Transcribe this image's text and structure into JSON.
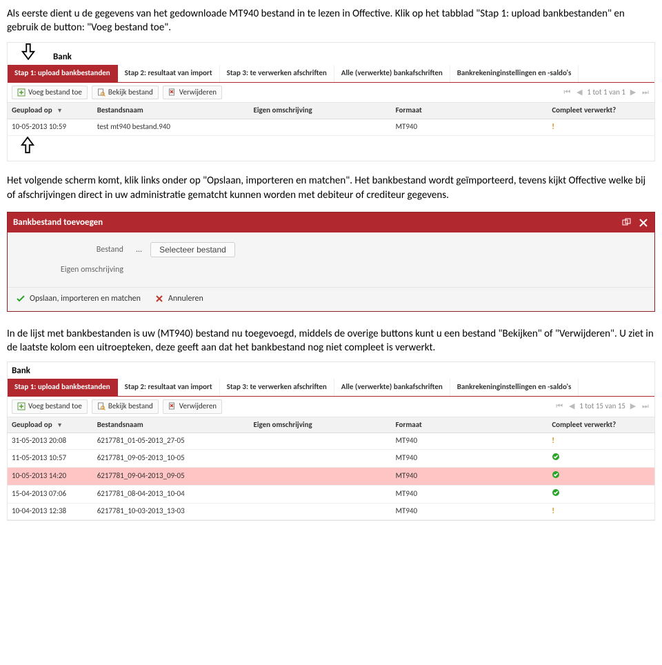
{
  "paragraphs": {
    "p1": "Als eerste dient u de gegevens van het gedownloade MT940 bestand in te lezen in Offective. Klik op het tabblad \"Stap 1: upload bankbestanden\" en gebruik de button: \"Voeg bestand toe\".",
    "p2": "Het volgende scherm komt, klik links onder op \"Opslaan, importeren en matchen\". Het bankbestand wordt geïmporteerd, tevens kijkt Offective welke bij of afschrijvingen direct in uw administratie gematcht kunnen worden met debiteur of crediteur gegevens.",
    "p3": "In de lijst met bankbestanden is uw (MT940) bestand nu toegevoegd, middels de overige buttons kunt u een bestand \"Bekijken\" of \"Verwijderen\". U ziet in de laatste kolom een uitroepteken, deze geeft aan dat het bankbestand nog niet compleet is verwerkt."
  },
  "banksection_title": "Bank",
  "tabs": [
    "Stap 1: upload bankbestanden",
    "Stap 2: resultaat van import",
    "Stap 3: te verwerken afschriften",
    "Alle (verwerkte) bankafschriften",
    "Bankrekeninginstellingen en -saldo's"
  ],
  "toolbar": {
    "add": "Voeg bestand toe",
    "view": "Bekijk bestand",
    "delete": "Verwijderen"
  },
  "pager1": "1 tot 1 van 1",
  "pager2": "1 tot 15 van 15",
  "columns": {
    "c1": "Geupload op",
    "c2": "Bestandsnaam",
    "c3": "Eigen omschrijving",
    "c4": "Formaat",
    "c5": "Compleet verwerkt?"
  },
  "grid1_row": {
    "date": "10-05-2013 10:59",
    "name": "test mt940 bestand.940",
    "fmt": "MT940",
    "compl": "!"
  },
  "dialog": {
    "title": "Bankbestand toevoegen",
    "field_bestand": "Bestand",
    "bestand_value": "...",
    "select_btn": "Selecteer bestand",
    "field_omschr": "Eigen omschrijving",
    "save": "Opslaan, importeren en matchen",
    "cancel": "Annuleren"
  },
  "grid2_rows": [
    {
      "date": "31-05-2013 20:08",
      "name": "6217781_01-05-2013_27-05",
      "fmt": "MT940",
      "compl": "!"
    },
    {
      "date": "11-05-2013 10:57",
      "name": "6217781_09-05-2013_10-05",
      "fmt": "MT940",
      "compl": "ok"
    },
    {
      "date": "10-05-2013 14:20",
      "name": "6217781_09-04-2013_09-05",
      "fmt": "MT940",
      "compl": "ok",
      "sel": true
    },
    {
      "date": "15-04-2013 07:06",
      "name": "6217781_08-04-2013_10-04",
      "fmt": "MT940",
      "compl": "ok"
    },
    {
      "date": "10-04-2013 12:38",
      "name": "6217781_10-03-2013_13-03",
      "fmt": "MT940",
      "compl": "!"
    }
  ],
  "colors": {
    "brand": "#b1282e",
    "row_sel": "#ffc4c4"
  }
}
